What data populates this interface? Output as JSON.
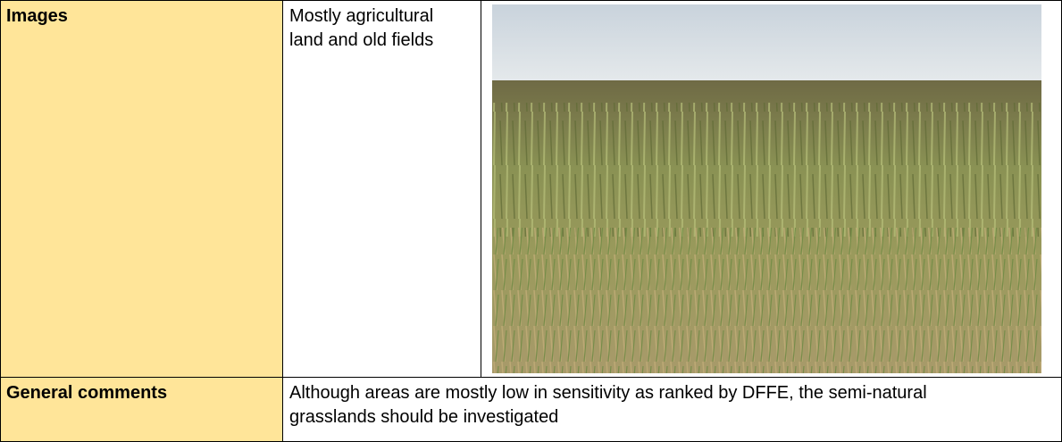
{
  "table": {
    "rows": [
      [
        "Images",
        "Mostly agricultural land and old fields"
      ],
      [
        "General comments",
        "Although areas are mostly low in sensitivity as ranked by DFFE, the semi-natural grasslands should be investigated"
      ]
    ]
  }
}
